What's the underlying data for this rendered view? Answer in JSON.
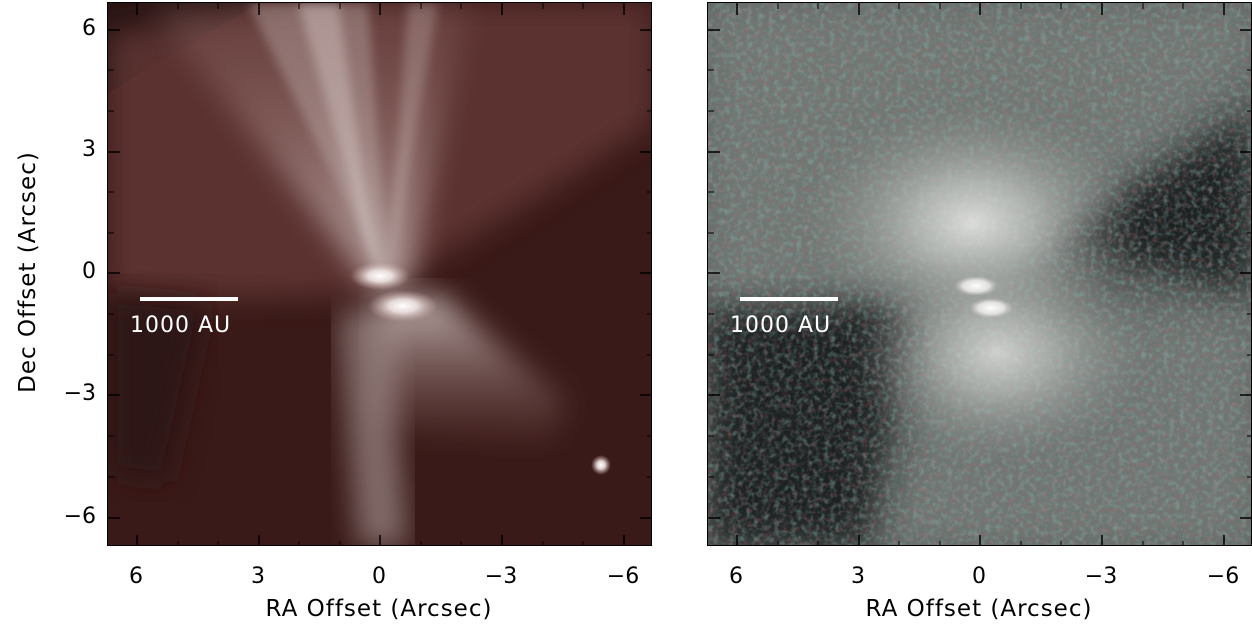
{
  "figure": {
    "panels": [
      {
        "id": "left",
        "scale_bar_label": "1000 AU",
        "x_axis_label": "RA Offset (Arcsec)",
        "x_ticks": [
          "6",
          "3",
          "0",
          "−3",
          "−6"
        ]
      },
      {
        "id": "right",
        "scale_bar_label": "1000 AU",
        "x_axis_label": "RA Offset (Arcsec)",
        "x_ticks": [
          "6",
          "3",
          "0",
          "−3",
          "−6"
        ]
      }
    ],
    "y_axis_label": "Dec Offset (Arcsec)",
    "y_ticks": [
      "6",
      "3",
      "0",
      "−3",
      "−6"
    ],
    "colors": {
      "left_background": "#3a1a18",
      "right_background": "#5a6460",
      "nebula": "#d8cfcc"
    }
  }
}
